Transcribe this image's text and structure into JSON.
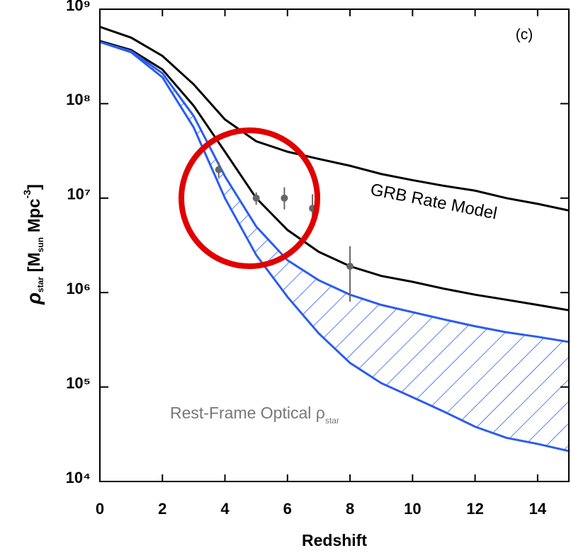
{
  "chart_data": {
    "type": "line",
    "xlabel": "Redshift",
    "ylabel_parts": [
      "ρ",
      "star",
      " [M",
      "sun",
      " Mpc",
      "-3",
      "]"
    ],
    "panel_label": "(c)",
    "annotations": [
      {
        "text": "GRB Rate Model"
      },
      {
        "parts": [
          "Rest-Frame Optical ρ",
          "star"
        ]
      }
    ],
    "log_y": true,
    "xlim": [
      0,
      15
    ],
    "ylim": [
      10000.0,
      1000000000.0
    ],
    "xticks": [
      0,
      2,
      4,
      6,
      8,
      10,
      12,
      14
    ],
    "yticks": [
      {
        "value": 10000.0,
        "label": "10⁴"
      },
      {
        "value": 100000.0,
        "label": "10⁵"
      },
      {
        "value": 1000000.0,
        "label": "10⁶"
      },
      {
        "value": 10000000.0,
        "label": "10⁷"
      },
      {
        "value": 100000000.0,
        "label": "10⁸"
      },
      {
        "value": 1000000000.0,
        "label": "10⁹"
      }
    ],
    "x": [
      0,
      1,
      2,
      3,
      4,
      5,
      6,
      7,
      8,
      9,
      10,
      11,
      12,
      13,
      14,
      15
    ],
    "series": [
      {
        "color": "#000000",
        "values": [
          650000000.0,
          500000000.0,
          320000000.0,
          160000000.0,
          68000000.0,
          40000000.0,
          31000000.0,
          26000000.0,
          22000000.0,
          18000000.0,
          15500000.0,
          13500000.0,
          12000000.0,
          10000000.0,
          8700000.0,
          7400000.0
        ]
      },
      {
        "color": "#000000",
        "values": [
          460000000.0,
          370000000.0,
          230000000.0,
          95000000.0,
          31000000.0,
          10000000.0,
          4600000.0,
          2700000.0,
          1900000.0,
          1500000.0,
          1300000.0,
          1100000.0,
          950000.0,
          840000.0,
          740000.0,
          650000.0
        ]
      },
      {
        "color": "#2a5cf0",
        "values": [
          450000000.0,
          360000000.0,
          210000000.0,
          74000000.0,
          17000000.0,
          5000000.0,
          2200000.0,
          1350000.0,
          950000.0,
          740000.0,
          620000.0,
          520000.0,
          440000.0,
          380000.0,
          340000.0,
          300000.0
        ]
      },
      {
        "color": "#2a5cf0",
        "values": [
          450000000.0,
          350000000.0,
          190000000.0,
          56000000.0,
          10000000.0,
          2500000.0,
          900000.0,
          370000.0,
          180000.0,
          110000.0,
          78000.0,
          55000.0,
          38000.0,
          29000.0,
          25000.0,
          21000.0
        ]
      }
    ],
    "points": {
      "color": "#666666",
      "x": [
        3.8,
        5.0,
        5.9,
        6.8,
        8.0
      ],
      "values": [
        20000000.0,
        10000000.0,
        10000000.0,
        7800000.0,
        1900000.0
      ],
      "lower": [
        16500000.0,
        8500000.0,
        7600000.0,
        5300000.0,
        800000.0
      ],
      "upper": [
        24000000.0,
        11500000.0,
        13000000.0,
        11000000.0,
        3100000.0
      ]
    }
  }
}
